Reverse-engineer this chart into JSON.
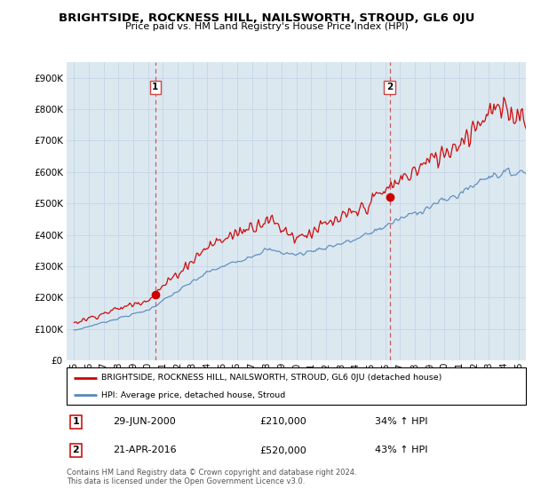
{
  "title": "BRIGHTSIDE, ROCKNESS HILL, NAILSWORTH, STROUD, GL6 0JU",
  "subtitle": "Price paid vs. HM Land Registry's House Price Index (HPI)",
  "ytick_values": [
    0,
    100000,
    200000,
    300000,
    400000,
    500000,
    600000,
    700000,
    800000,
    900000
  ],
  "ylim": [
    0,
    950000
  ],
  "xlim_start": 1994.5,
  "xlim_end": 2025.5,
  "x_tick_years": [
    1995,
    1996,
    1997,
    1998,
    1999,
    2000,
    2001,
    2002,
    2003,
    2004,
    2005,
    2006,
    2007,
    2008,
    2009,
    2010,
    2011,
    2012,
    2013,
    2014,
    2015,
    2016,
    2017,
    2018,
    2019,
    2020,
    2021,
    2022,
    2023,
    2024,
    2025
  ],
  "red_line_color": "#cc0000",
  "blue_line_color": "#5588bb",
  "grid_color": "#c8d8e8",
  "plot_bg_color": "#dce8f0",
  "marker1_year": 2000.49,
  "marker1_value": 210000,
  "marker2_year": 2016.3,
  "marker2_value": 520000,
  "marker1_label": "1",
  "marker2_label": "2",
  "vline_color": "#cc4444",
  "legend_line1": "BRIGHTSIDE, ROCKNESS HILL, NAILSWORTH, STROUD, GL6 0JU (detached house)",
  "legend_line2": "HPI: Average price, detached house, Stroud",
  "annotation1_date": "29-JUN-2000",
  "annotation1_price": "£210,000",
  "annotation1_hpi": "34% ↑ HPI",
  "annotation2_date": "21-APR-2016",
  "annotation2_price": "£520,000",
  "annotation2_hpi": "43% ↑ HPI",
  "footer": "Contains HM Land Registry data © Crown copyright and database right 2024.\nThis data is licensed under the Open Government Licence v3.0.",
  "bg_color": "#ffffff"
}
